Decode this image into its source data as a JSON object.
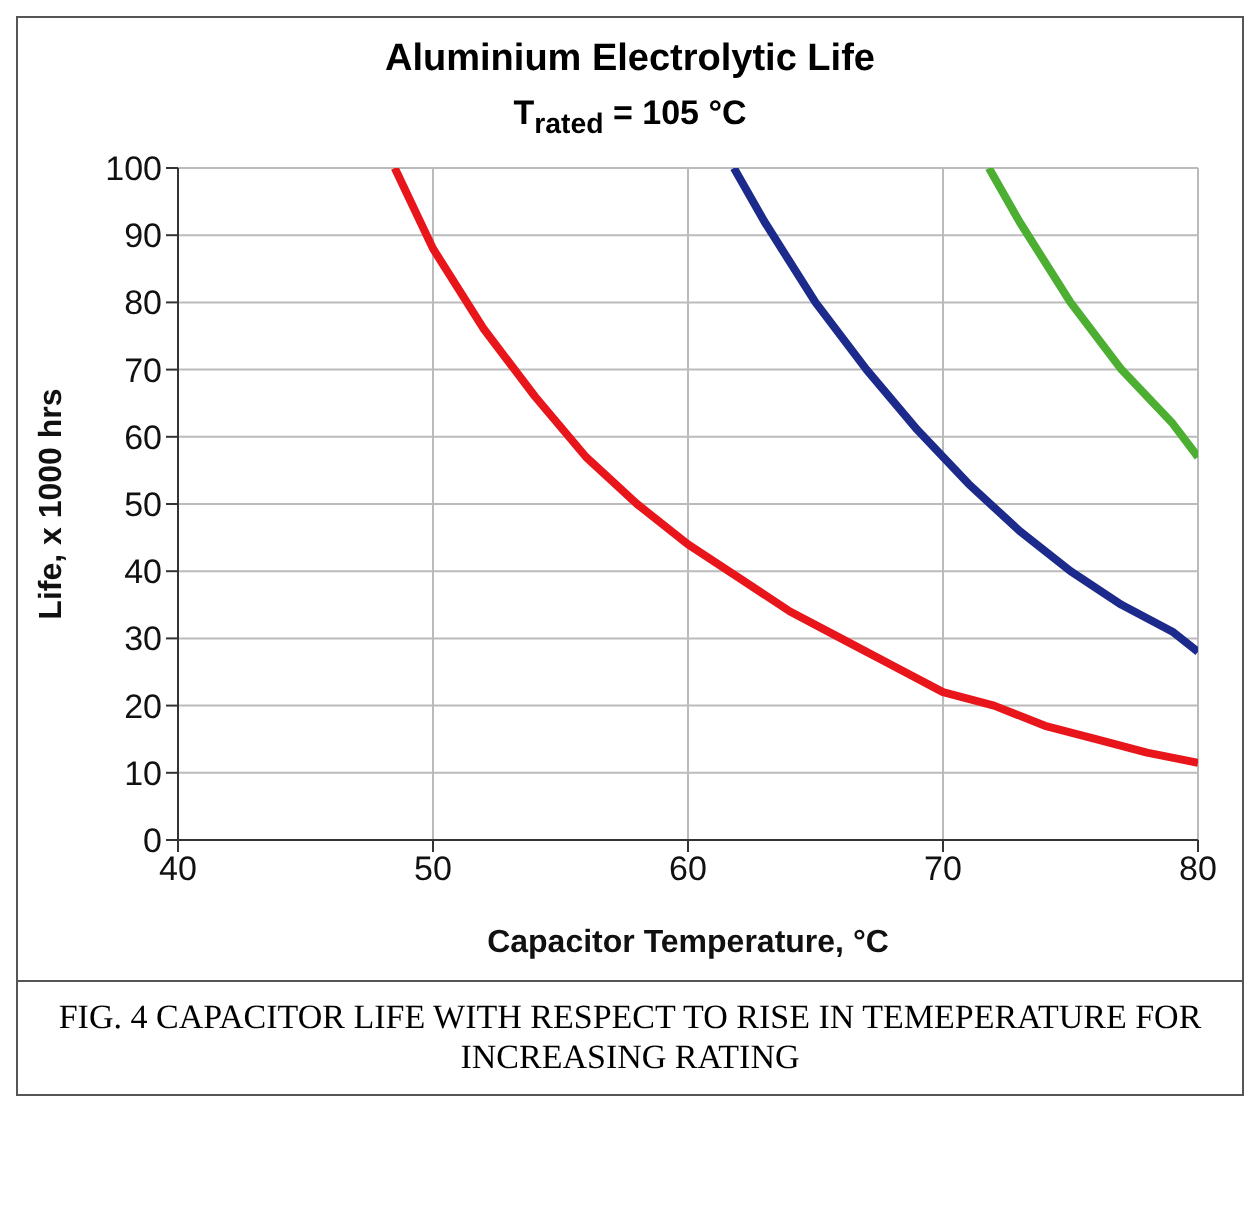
{
  "chart_data": {
    "type": "line",
    "title": "Aluminium Electrolytic Life",
    "subtitle": "T$_{rated}$ = 105 °C",
    "xlabel": "Capacitor Temperature, °C",
    "ylabel": "Life, x 1000 hrs",
    "xlim": [
      40,
      80
    ],
    "xticks": [
      40,
      50,
      60,
      70,
      80
    ],
    "ylim": [
      0,
      100
    ],
    "yticks": [
      0,
      10,
      20,
      30,
      40,
      50,
      60,
      70,
      80,
      90,
      100
    ],
    "grid": true,
    "line_style": "solid",
    "series": [
      {
        "color": "#e8161b",
        "x": [
          48.5,
          50,
          52,
          54,
          56,
          58,
          60,
          62,
          64,
          66,
          68,
          70,
          72,
          74,
          76,
          78,
          80
        ],
        "values": [
          100,
          88,
          76,
          66,
          57,
          50,
          44,
          39,
          34,
          30,
          26,
          22,
          20,
          17,
          15,
          13,
          11.5
        ]
      },
      {
        "color": "#1c2a8c",
        "x": [
          61.8,
          63,
          65,
          67,
          69,
          71,
          73,
          75,
          77,
          79,
          80
        ],
        "values": [
          100,
          92,
          80,
          70,
          61,
          53,
          46,
          40,
          35,
          31,
          28
        ]
      },
      {
        "color": "#4caf32",
        "x": [
          71.8,
          73,
          75,
          77,
          79,
          80
        ],
        "values": [
          100,
          92,
          80,
          70,
          62,
          57
        ]
      }
    ],
    "annotations": [
      "FIG. 4    CAPACITOR LIFE  WITH RESPECT TO RISE IN TEMEPERATURE FOR INCREASING RATING"
    ]
  }
}
